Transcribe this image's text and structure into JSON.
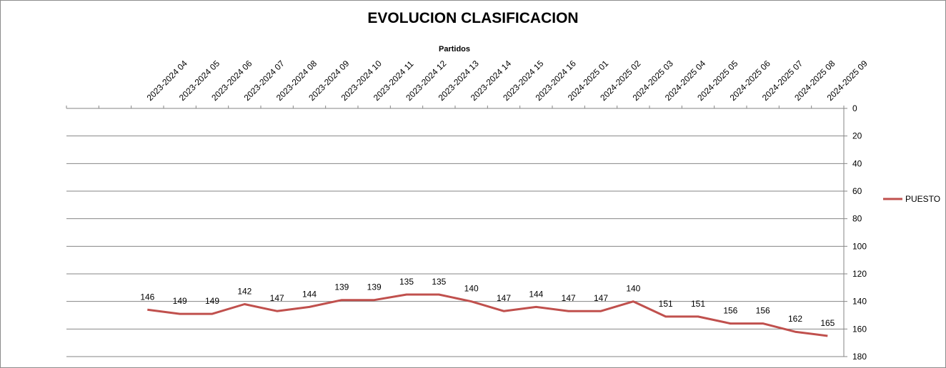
{
  "chart_data": {
    "type": "line",
    "title": "EVOLUCION CLASIFICACION",
    "xlabel": "Partidos",
    "ylabel": "",
    "x_axis_position": "top",
    "y_axis_position": "right",
    "y_reversed": true,
    "ylim": [
      0,
      180
    ],
    "yticks": [
      0,
      20,
      40,
      60,
      80,
      100,
      120,
      140,
      160,
      180
    ],
    "grid": true,
    "legend": "right",
    "categories": [
      "",
      "",
      "2023-2024 04",
      "2023-2024 05",
      "2023-2024 06",
      "2023-2024 07",
      "2023-2024 08",
      "2023-2024 09",
      "2023-2024 10",
      "2023-2024 11",
      "2023-2024 12",
      "2023-2024 13",
      "2023-2024 14",
      "2023-2024 15",
      "2023-2024 16",
      "2024-2025 01",
      "2024-2025 02",
      "2024-2025 03",
      "2024-2025 04",
      "2024-2025 05",
      "2024-2025 06",
      "2024-2025 07",
      "2024-2025 08",
      "2024-2025 09"
    ],
    "series": [
      {
        "name": "PUESTO",
        "color": "#c0504d",
        "values": [
          null,
          null,
          146,
          149,
          149,
          142,
          147,
          144,
          139,
          139,
          135,
          135,
          140,
          147,
          144,
          147,
          147,
          140,
          151,
          151,
          156,
          156,
          162,
          165
        ]
      }
    ]
  }
}
